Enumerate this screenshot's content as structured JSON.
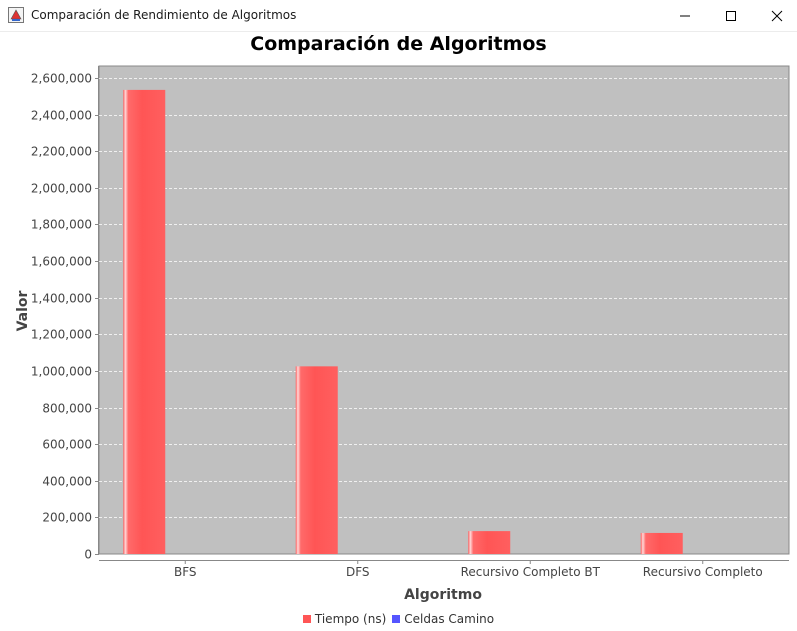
{
  "window": {
    "title": "Comparación de Rendimiento de Algoritmos",
    "app_icon": "java-app-icon",
    "controls": [
      "minimize-icon",
      "maximize-icon",
      "close-icon"
    ]
  },
  "chart_data": {
    "type": "bar",
    "title": "Comparación de Algoritmos",
    "xlabel": "Algoritmo",
    "ylabel": "Valor",
    "categories": [
      "BFS",
      "DFS",
      "Recursivo Completo BT",
      "Recursivo Completo"
    ],
    "series": [
      {
        "name": "Tiempo (ns)",
        "color": "#ff5555",
        "values": [
          2535000,
          1025000,
          125000,
          115000
        ]
      },
      {
        "name": "Celdas Camino",
        "color": "#5555ff",
        "values": [
          0,
          0,
          0,
          0
        ]
      }
    ],
    "ylim": [
      0,
      2600000
    ],
    "yticks": [
      0,
      200000,
      400000,
      600000,
      800000,
      1000000,
      1200000,
      1400000,
      1600000,
      1800000,
      2000000,
      2200000,
      2400000,
      2600000
    ],
    "ytick_labels": [
      "0",
      "200,000",
      "400,000",
      "600,000",
      "800,000",
      "1,000,000",
      "1,200,000",
      "1,400,000",
      "1,600,000",
      "1,800,000",
      "2,000,000",
      "2,200,000",
      "2,400,000",
      "2,600,000"
    ],
    "grid": true,
    "plot_background": "#c0c0c0",
    "legend_position": "bottom"
  }
}
